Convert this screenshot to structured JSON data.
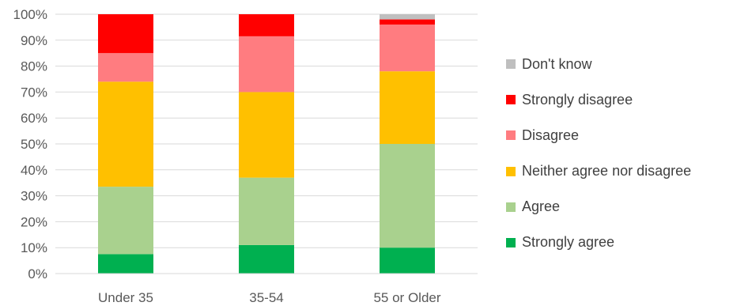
{
  "chart_data": {
    "type": "bar",
    "stacked": true,
    "percent_stacked": true,
    "categories": [
      "Under 35",
      "35-54",
      "55 or Older"
    ],
    "series": [
      {
        "name": "Strongly agree",
        "color": "#00b050",
        "values": [
          7.5,
          11,
          10
        ]
      },
      {
        "name": "Agree",
        "color": "#a9d18e",
        "values": [
          26,
          26,
          40
        ]
      },
      {
        "name": "Neither agree nor disagree",
        "color": "#ffc000",
        "values": [
          40.5,
          33,
          28
        ]
      },
      {
        "name": "Disagree",
        "color": "#ff7c80",
        "values": [
          11,
          21.5,
          18
        ]
      },
      {
        "name": "Strongly disagree",
        "color": "#ff0000",
        "values": [
          15,
          8.5,
          2
        ]
      },
      {
        "name": "Don't know",
        "color": "#bfbfbf",
        "values": [
          0,
          0,
          2
        ]
      }
    ],
    "ylim": [
      0,
      100
    ],
    "yticks": [
      "0%",
      "10%",
      "20%",
      "30%",
      "40%",
      "50%",
      "60%",
      "70%",
      "80%",
      "90%",
      "100%"
    ],
    "grid": true,
    "legend_position": "right",
    "legend_order": [
      "Don't know",
      "Strongly disagree",
      "Disagree",
      "Neither agree nor disagree",
      "Agree",
      "Strongly agree"
    ]
  }
}
